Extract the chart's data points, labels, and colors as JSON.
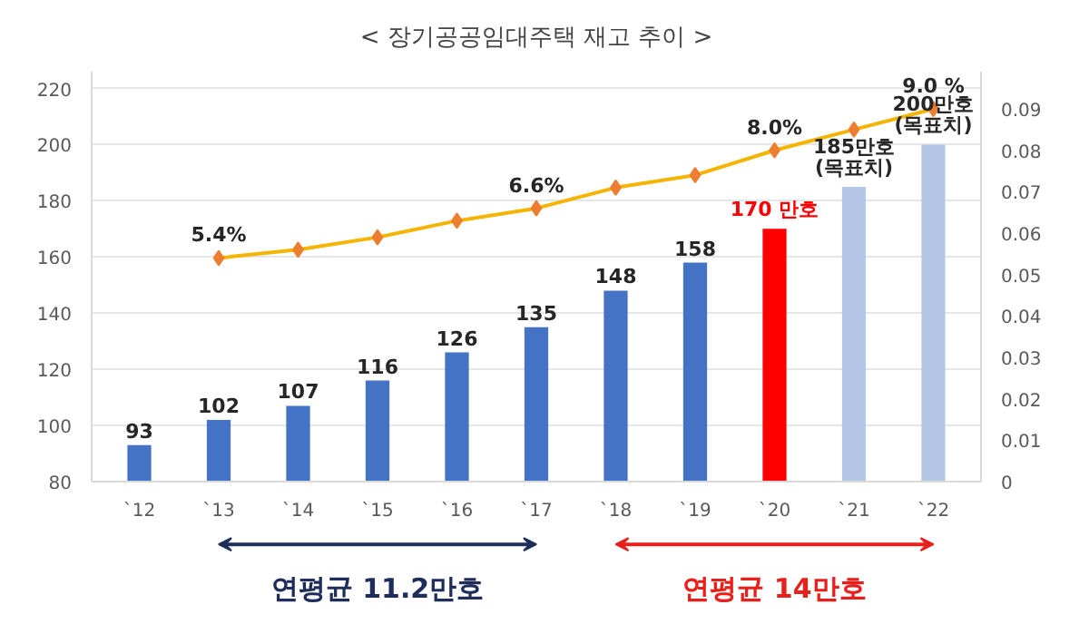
{
  "chart_data": {
    "type": "bar",
    "title": "< 장기공공임대주택 재고 추이 >",
    "categories": [
      "`12",
      "`13",
      "`14",
      "`15",
      "`16",
      "`17",
      "`18",
      "`19",
      "`20",
      "`21",
      "`22"
    ],
    "series": [
      {
        "type": "bar",
        "colors": [
          "#4472c4",
          "#4472c4",
          "#4472c4",
          "#4472c4",
          "#4472c4",
          "#4472c4",
          "#4472c4",
          "#4472c4",
          "#ff0000",
          "#b4c7e7",
          "#b4c7e7"
        ],
        "values": [
          93,
          102,
          107,
          116,
          126,
          135,
          148,
          158,
          170,
          185,
          200
        ],
        "value_labels": [
          "93",
          "102",
          "107",
          "116",
          "126",
          "135",
          "148",
          "158",
          "170 만호",
          "185만호\n(목표치)",
          "200만호\n(목표치)"
        ]
      },
      {
        "type": "line",
        "axis": "y2",
        "color": "#f4b400",
        "marker": "diamond",
        "values": [
          null,
          0.054,
          0.056,
          0.059,
          0.063,
          0.066,
          0.071,
          0.074,
          0.08,
          0.085,
          0.09
        ],
        "value_labels": [
          null,
          "5.4%",
          null,
          null,
          null,
          "6.6%",
          null,
          null,
          "8.0%",
          null,
          "9.0 %"
        ]
      }
    ],
    "ylim": [
      80,
      226
    ],
    "yticks": [
      80,
      100,
      120,
      140,
      160,
      180,
      200,
      220
    ],
    "y2lim": [
      0,
      0.099
    ],
    "y2ticks": [
      0,
      0.01,
      0.02,
      0.03,
      0.04,
      0.05,
      0.06,
      0.07,
      0.08,
      0.09
    ],
    "grid": "y",
    "annotations": [
      "연평균 11.2만호",
      "연평균 14만호"
    ]
  }
}
